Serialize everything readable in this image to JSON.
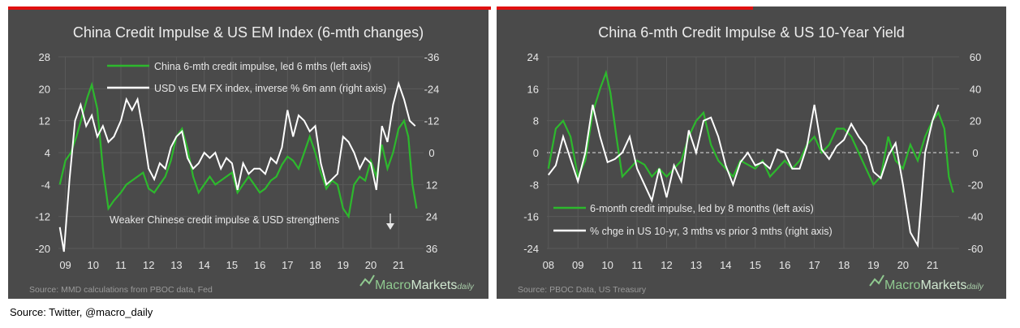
{
  "footer": {
    "source": "Source: Twitter, @macro_daily"
  },
  "colors": {
    "background": "#4a4a4a",
    "accent_red": "#e01010",
    "green_line": "#2db82d",
    "white_line": "#ffffff"
  },
  "chart_data": [
    {
      "type": "line",
      "title": "China Credit Impulse & US EM Index (6-mth changes)",
      "x_ticks": [
        "09",
        "10",
        "11",
        "12",
        "13",
        "14",
        "15",
        "16",
        "17",
        "18",
        "19",
        "20",
        "21"
      ],
      "xlim": [
        2008.75,
        2021.9
      ],
      "left_axis": {
        "ticks": [
          "28",
          "20",
          "12",
          "4",
          "-4",
          "-12",
          "-20"
        ],
        "ylim": [
          -20,
          28
        ]
      },
      "right_axis": {
        "ticks": [
          "-36",
          "-24",
          "-12",
          "0",
          "12",
          "24",
          "36"
        ],
        "ylim": [
          -36,
          36
        ],
        "inverted": true
      },
      "series": [
        {
          "name": "China 6-mth credit impulse, led 6 mths (left axis)",
          "axis": "left",
          "color": "#2db82d",
          "x": [
            2008.8,
            2009.0,
            2009.2,
            2009.4,
            2009.6,
            2009.8,
            2009.95,
            2010.15,
            2010.35,
            2010.55,
            2010.75,
            2011.0,
            2011.2,
            2011.4,
            2011.6,
            2011.8,
            2012.0,
            2012.2,
            2012.4,
            2012.6,
            2012.8,
            2013.0,
            2013.2,
            2013.4,
            2013.6,
            2013.8,
            2014.0,
            2014.2,
            2014.4,
            2014.6,
            2014.8,
            2015.0,
            2015.2,
            2015.4,
            2015.6,
            2015.8,
            2016.0,
            2016.2,
            2016.4,
            2016.6,
            2016.8,
            2017.0,
            2017.2,
            2017.4,
            2017.6,
            2017.8,
            2018.0,
            2018.2,
            2018.4,
            2018.6,
            2018.8,
            2019.0,
            2019.2,
            2019.4,
            2019.6,
            2019.8,
            2020.0,
            2020.2,
            2020.4,
            2020.6,
            2020.8,
            2021.0,
            2021.2,
            2021.35,
            2021.5,
            2021.65
          ],
          "values": [
            -4,
            2,
            4,
            8,
            13,
            18,
            21,
            15,
            0,
            -10,
            -8,
            -6,
            -4,
            -3,
            -2,
            -1,
            -5,
            -6,
            -4,
            -2,
            2,
            8,
            10,
            5,
            -2,
            -6,
            -4,
            -2,
            -4,
            -3,
            -2,
            -1,
            -6,
            -4,
            -2,
            -4,
            -6,
            -5,
            -3,
            -2,
            1,
            3,
            2,
            0,
            4,
            8,
            4,
            -1,
            -5,
            -3,
            -4,
            -10,
            -12,
            -4,
            -2,
            -3,
            2,
            -2,
            6,
            0,
            4,
            10,
            12,
            8,
            -4,
            -10
          ]
        },
        {
          "name": "USD vs EM FX index, inverse % 6m ann (right axis)",
          "axis": "right",
          "color": "#ffffff",
          "x": [
            2008.8,
            2008.95,
            2009.15,
            2009.35,
            2009.55,
            2009.75,
            2009.95,
            2010.15,
            2010.35,
            2010.55,
            2010.75,
            2011.0,
            2011.2,
            2011.4,
            2011.6,
            2011.8,
            2012.0,
            2012.2,
            2012.4,
            2012.6,
            2012.8,
            2013.0,
            2013.2,
            2013.4,
            2013.6,
            2013.8,
            2014.0,
            2014.2,
            2014.4,
            2014.6,
            2014.8,
            2015.0,
            2015.2,
            2015.4,
            2015.6,
            2015.8,
            2016.0,
            2016.2,
            2016.4,
            2016.6,
            2016.8,
            2017.0,
            2017.2,
            2017.4,
            2017.6,
            2017.8,
            2018.0,
            2018.2,
            2018.4,
            2018.6,
            2018.8,
            2019.0,
            2019.2,
            2019.4,
            2019.6,
            2019.8,
            2020.0,
            2020.2,
            2020.4,
            2020.6,
            2020.8,
            2021.0,
            2021.2,
            2021.4,
            2021.6
          ],
          "values": [
            28,
            40,
            10,
            -12,
            -18,
            -10,
            -14,
            -6,
            -10,
            -4,
            -6,
            -12,
            -20,
            -16,
            -20,
            -8,
            6,
            10,
            4,
            6,
            -2,
            -6,
            -8,
            2,
            6,
            4,
            0,
            2,
            0,
            6,
            2,
            4,
            14,
            4,
            8,
            6,
            6,
            8,
            2,
            4,
            -2,
            -16,
            -6,
            -14,
            -12,
            -8,
            -10,
            4,
            12,
            10,
            8,
            -6,
            -4,
            0,
            6,
            2,
            4,
            14,
            -10,
            -4,
            -18,
            -26,
            -20,
            -12,
            -10
          ]
        }
      ],
      "annotation": "Weaker Chinese credit impulse & USD strengthens",
      "source": "Source: MMD calculations from PBOC data, Fed",
      "logo": {
        "part1": "Macro",
        "part2": "Markets",
        "part3": "daily"
      }
    },
    {
      "type": "line",
      "title": "China 6-mth Credit Impulse & US 10-Year Yield",
      "x_ticks": [
        "08",
        "09",
        "10",
        "11",
        "12",
        "13",
        "14",
        "15",
        "16",
        "17",
        "18",
        "19",
        "20",
        "21"
      ],
      "xlim": [
        2007.95,
        2021.9
      ],
      "left_axis": {
        "ticks": [
          "24",
          "16",
          "8",
          "0",
          "-8",
          "-16",
          "-24"
        ],
        "ylim": [
          -24,
          24
        ]
      },
      "right_axis": {
        "ticks": [
          "60",
          "40",
          "20",
          "0",
          "-20",
          "-40",
          "-60"
        ],
        "ylim": [
          -60,
          60
        ]
      },
      "series": [
        {
          "name": "6-month credit impulse, led by 8 months (left axis)",
          "axis": "left",
          "color": "#2db82d",
          "x": [
            2008.0,
            2008.25,
            2008.5,
            2008.75,
            2009.0,
            2009.25,
            2009.5,
            2009.75,
            2009.95,
            2010.1,
            2010.3,
            2010.5,
            2010.75,
            2011.0,
            2011.25,
            2011.5,
            2011.75,
            2012.0,
            2012.25,
            2012.5,
            2012.75,
            2013.0,
            2013.25,
            2013.5,
            2013.75,
            2014.0,
            2014.25,
            2014.5,
            2014.75,
            2015.0,
            2015.25,
            2015.5,
            2015.75,
            2016.0,
            2016.25,
            2016.5,
            2016.75,
            2017.0,
            2017.25,
            2017.5,
            2017.75,
            2018.0,
            2018.25,
            2018.5,
            2018.75,
            2019.0,
            2019.25,
            2019.5,
            2019.75,
            2020.0,
            2020.25,
            2020.5,
            2020.75,
            2021.0,
            2021.2,
            2021.4,
            2021.55,
            2021.7
          ],
          "values": [
            -4,
            6,
            8,
            4,
            -6,
            -2,
            10,
            16,
            20,
            15,
            4,
            -6,
            -4,
            -2,
            -3,
            -6,
            -4,
            -6,
            -4,
            -2,
            4,
            8,
            10,
            2,
            -2,
            -4,
            -6,
            -2,
            -3,
            -4,
            -2,
            -6,
            -4,
            -2,
            -4,
            -2,
            2,
            4,
            0,
            2,
            6,
            6,
            4,
            0,
            -4,
            -8,
            -6,
            4,
            -2,
            -4,
            2,
            -2,
            4,
            8,
            10,
            6,
            -6,
            -10
          ]
        },
        {
          "name": "% chge in US 10-yr, 3 mths vs prior 3 mths (right axis)",
          "axis": "right",
          "color": "#ffffff",
          "x": [
            2008.0,
            2008.25,
            2008.5,
            2008.75,
            2009.0,
            2009.25,
            2009.5,
            2009.75,
            2010.0,
            2010.25,
            2010.5,
            2010.75,
            2011.0,
            2011.25,
            2011.5,
            2011.75,
            2012.0,
            2012.25,
            2012.5,
            2012.75,
            2013.0,
            2013.25,
            2013.5,
            2013.75,
            2014.0,
            2014.25,
            2014.5,
            2014.75,
            2015.0,
            2015.25,
            2015.5,
            2015.75,
            2016.0,
            2016.25,
            2016.5,
            2016.75,
            2017.0,
            2017.25,
            2017.5,
            2017.75,
            2018.0,
            2018.25,
            2018.5,
            2018.75,
            2019.0,
            2019.25,
            2019.5,
            2019.75,
            2020.0,
            2020.25,
            2020.5,
            2020.75,
            2021.0,
            2021.2
          ],
          "values": [
            -14,
            -8,
            10,
            -4,
            -18,
            0,
            30,
            10,
            -6,
            -4,
            0,
            10,
            -10,
            -20,
            -30,
            -10,
            -28,
            -8,
            -18,
            14,
            0,
            20,
            22,
            10,
            -8,
            -20,
            -6,
            0,
            -8,
            -6,
            -10,
            2,
            0,
            -10,
            -10,
            4,
            30,
            2,
            -4,
            4,
            8,
            18,
            10,
            4,
            -12,
            -16,
            -2,
            6,
            -20,
            -50,
            -58,
            0,
            20,
            30
          ]
        }
      ],
      "source": "Source:  PBOC  Data,  US Treasury",
      "logo": {
        "part1": "Macro",
        "part2": "Markets",
        "part3": "daily"
      }
    }
  ]
}
